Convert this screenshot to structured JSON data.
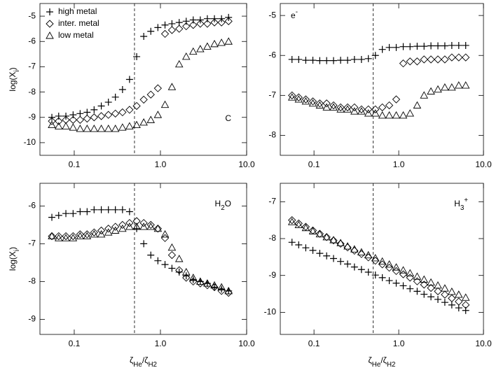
{
  "chart_data": [
    {
      "type": "scatter",
      "xscale": "log",
      "xlim": [
        0.04,
        10
      ],
      "xticks": [
        0.1,
        {
          "value": 1,
          "label": "1.0"
        },
        {
          "value": 10,
          "label": "10.0"
        }
      ],
      "ylim": [
        -10.5,
        -4.5
      ],
      "yticks": [
        -10,
        -9,
        -8,
        -7,
        -6,
        -5
      ],
      "vline": 0.5,
      "legend": "upper left",
      "annotation": [
        {
          "text": "C"
        }
      ],
      "ylabel": [
        {
          "text": "log(X"
        },
        {
          "text": "i",
          "sub": true
        },
        {
          "text": ")"
        }
      ],
      "x": [
        0.055,
        0.066,
        0.08,
        0.097,
        0.117,
        0.141,
        0.17,
        0.206,
        0.249,
        0.3,
        0.363,
        0.438,
        0.53,
        0.64,
        0.773,
        0.934,
        1.13,
        1.36,
        1.65,
        1.99,
        2.4,
        2.9,
        3.5,
        4.23,
        5.11,
        6.17
      ],
      "series": [
        {
          "name": "high metal",
          "marker": "plus",
          "color": "#000000",
          "values": [
            -9.0,
            -8.95,
            -8.95,
            -8.9,
            -8.85,
            -8.8,
            -8.7,
            -8.55,
            -8.4,
            -8.2,
            -7.9,
            -7.5,
            -6.6,
            -5.8,
            -5.6,
            -5.45,
            -5.35,
            -5.3,
            -5.25,
            -5.2,
            -5.15,
            -5.15,
            -5.1,
            -5.1,
            -5.1,
            -5.05
          ]
        },
        {
          "name": "inter. metal",
          "marker": "diamond",
          "color": "#000000",
          "values": [
            -9.15,
            -9.15,
            -9.1,
            -9.1,
            -9.1,
            -9.05,
            -9.0,
            -8.95,
            -8.9,
            -8.85,
            -8.8,
            -8.7,
            -8.55,
            -8.3,
            -8.1,
            -7.85,
            -5.7,
            -5.55,
            -5.5,
            -5.4,
            -5.35,
            -5.3,
            -5.3,
            -5.25,
            -5.25,
            -5.2
          ]
        },
        {
          "name": "low metal",
          "marker": "triangle",
          "color": "#000000",
          "values": [
            -9.3,
            -9.35,
            -9.35,
            -9.4,
            -9.45,
            -9.45,
            -9.45,
            -9.45,
            -9.45,
            -9.45,
            -9.4,
            -9.35,
            -9.3,
            -9.2,
            -9.1,
            -8.9,
            -8.5,
            -7.8,
            -6.9,
            -6.6,
            -6.4,
            -6.3,
            -6.2,
            -6.1,
            -6.05,
            -6.0
          ]
        }
      ]
    },
    {
      "type": "scatter",
      "xscale": "log",
      "xlim": [
        0.04,
        10
      ],
      "xticks": [
        0.1,
        {
          "value": 1,
          "label": "1.0"
        },
        {
          "value": 10,
          "label": "10.0"
        }
      ],
      "ylim": [
        -8.5,
        -4.7
      ],
      "yticks": [
        -8,
        -7,
        -6,
        -5
      ],
      "vline": 0.5,
      "annotation": [
        {
          "text": "e"
        },
        {
          "text": "-",
          "sup": true
        }
      ],
      "x": [
        0.055,
        0.066,
        0.08,
        0.097,
        0.117,
        0.141,
        0.17,
        0.206,
        0.249,
        0.3,
        0.363,
        0.438,
        0.53,
        0.64,
        0.773,
        0.934,
        1.13,
        1.36,
        1.65,
        1.99,
        2.4,
        2.9,
        3.5,
        4.23,
        5.11,
        6.17
      ],
      "series": [
        {
          "marker": "plus",
          "color": "#000000",
          "values": [
            -6.1,
            -6.1,
            -6.12,
            -6.12,
            -6.13,
            -6.13,
            -6.13,
            -6.12,
            -6.12,
            -6.1,
            -6.1,
            -6.08,
            -6.0,
            -5.85,
            -5.8,
            -5.8,
            -5.78,
            -5.78,
            -5.77,
            -5.77,
            -5.76,
            -5.76,
            -5.76,
            -5.75,
            -5.75,
            -5.75
          ]
        },
        {
          "marker": "diamond",
          "color": "#000000",
          "values": [
            -7.0,
            -7.05,
            -7.1,
            -7.15,
            -7.2,
            -7.2,
            -7.25,
            -7.3,
            -7.3,
            -7.3,
            -7.35,
            -7.35,
            -7.35,
            -7.3,
            -7.25,
            -7.1,
            -6.2,
            -6.15,
            -6.15,
            -6.1,
            -6.1,
            -6.1,
            -6.1,
            -6.05,
            -6.05,
            -6.05
          ]
        },
        {
          "marker": "triangle",
          "color": "#000000",
          "values": [
            -7.05,
            -7.1,
            -7.15,
            -7.2,
            -7.25,
            -7.3,
            -7.3,
            -7.35,
            -7.35,
            -7.4,
            -7.4,
            -7.45,
            -7.45,
            -7.5,
            -7.5,
            -7.5,
            -7.5,
            -7.45,
            -7.25,
            -7.0,
            -6.9,
            -6.85,
            -6.8,
            -6.8,
            -6.75,
            -6.75
          ]
        }
      ]
    },
    {
      "type": "scatter",
      "xscale": "log",
      "xlim": [
        0.04,
        10
      ],
      "xticks": [
        0.1,
        {
          "value": 1,
          "label": "1.0"
        },
        {
          "value": 10,
          "label": "10.0"
        }
      ],
      "ylim": [
        -9.4,
        -5.4
      ],
      "yticks": [
        -9,
        -8,
        -7,
        -6
      ],
      "vline": 0.5,
      "annotation": [
        {
          "text": "H"
        },
        {
          "text": "2",
          "sub": true
        },
        {
          "text": "O"
        }
      ],
      "ylabel": [
        {
          "text": "log(X"
        },
        {
          "text": "i",
          "sub": true
        },
        {
          "text": ")"
        }
      ],
      "xlabel": [
        {
          "text": "ζ"
        },
        {
          "text": "He",
          "sub": true
        },
        {
          "text": "/ζ"
        },
        {
          "text": "H2",
          "sub": true
        }
      ],
      "x": [
        0.055,
        0.066,
        0.08,
        0.097,
        0.117,
        0.141,
        0.17,
        0.206,
        0.249,
        0.3,
        0.363,
        0.438,
        0.53,
        0.64,
        0.773,
        0.934,
        1.13,
        1.36,
        1.65,
        1.99,
        2.4,
        2.9,
        3.5,
        4.23,
        5.11,
        6.17
      ],
      "series": [
        {
          "marker": "plus",
          "color": "#000000",
          "values": [
            -6.3,
            -6.25,
            -6.2,
            -6.2,
            -6.15,
            -6.15,
            -6.1,
            -6.1,
            -6.1,
            -6.1,
            -6.1,
            -6.15,
            -6.6,
            -7.0,
            -7.3,
            -7.45,
            -7.55,
            -7.65,
            -7.75,
            -7.85,
            -7.95,
            -8.0,
            -8.05,
            -8.15,
            -8.2,
            -8.25
          ]
        },
        {
          "marker": "diamond",
          "color": "#000000",
          "values": [
            -6.8,
            -6.8,
            -6.8,
            -6.8,
            -6.75,
            -6.75,
            -6.7,
            -6.65,
            -6.6,
            -6.55,
            -6.5,
            -6.45,
            -6.4,
            -6.45,
            -6.5,
            -6.6,
            -6.85,
            -7.3,
            -7.7,
            -7.9,
            -8.0,
            -8.05,
            -8.1,
            -8.15,
            -8.25,
            -8.3
          ]
        },
        {
          "marker": "triangle",
          "color": "#000000",
          "values": [
            -6.8,
            -6.85,
            -6.85,
            -6.85,
            -6.8,
            -6.8,
            -6.75,
            -6.75,
            -6.7,
            -6.65,
            -6.6,
            -6.55,
            -6.55,
            -6.55,
            -6.55,
            -6.6,
            -6.75,
            -7.1,
            -7.4,
            -7.75,
            -7.9,
            -8.0,
            -8.05,
            -8.1,
            -8.15,
            -8.25
          ]
        }
      ]
    },
    {
      "type": "scatter",
      "xscale": "log",
      "xlim": [
        0.04,
        10
      ],
      "xticks": [
        0.1,
        {
          "value": 1,
          "label": "1.0"
        },
        {
          "value": 10,
          "label": "10.0"
        }
      ],
      "ylim": [
        -10.6,
        -6.5
      ],
      "yticks": [
        -10,
        -9,
        -8,
        -7
      ],
      "vline": 0.5,
      "annotation": [
        {
          "text": "H"
        },
        {
          "text": "3",
          "sub": true
        },
        {
          "text": "+",
          "sup": true
        }
      ],
      "xlabel": [
        {
          "text": "ζ"
        },
        {
          "text": "He",
          "sub": true
        },
        {
          "text": "/ζ"
        },
        {
          "text": "H2",
          "sub": true
        }
      ],
      "x": [
        0.055,
        0.066,
        0.08,
        0.097,
        0.117,
        0.141,
        0.17,
        0.206,
        0.249,
        0.3,
        0.363,
        0.438,
        0.53,
        0.64,
        0.773,
        0.934,
        1.13,
        1.36,
        1.65,
        1.99,
        2.4,
        2.9,
        3.5,
        4.23,
        5.11,
        6.17
      ],
      "series": [
        {
          "marker": "plus",
          "color": "#000000",
          "values": [
            -8.1,
            -8.17,
            -8.25,
            -8.32,
            -8.4,
            -8.47,
            -8.54,
            -8.62,
            -8.69,
            -8.77,
            -8.84,
            -8.91,
            -8.99,
            -9.06,
            -9.14,
            -9.21,
            -9.28,
            -9.36,
            -9.43,
            -9.51,
            -9.58,
            -9.65,
            -9.73,
            -9.8,
            -9.88,
            -9.95
          ]
        },
        {
          "marker": "diamond",
          "color": "#000000",
          "values": [
            -7.5,
            -7.59,
            -7.68,
            -7.78,
            -7.87,
            -7.96,
            -8.05,
            -8.14,
            -8.24,
            -8.33,
            -8.42,
            -8.51,
            -8.6,
            -8.7,
            -8.79,
            -8.88,
            -8.97,
            -9.06,
            -9.16,
            -9.25,
            -9.34,
            -9.43,
            -9.52,
            -9.62,
            -9.71,
            -9.8
          ]
        },
        {
          "marker": "triangle",
          "color": "#000000",
          "values": [
            -7.55,
            -7.63,
            -7.71,
            -7.8,
            -7.88,
            -7.96,
            -8.04,
            -8.12,
            -8.21,
            -8.29,
            -8.37,
            -8.45,
            -8.53,
            -8.62,
            -8.7,
            -8.78,
            -8.86,
            -8.94,
            -9.03,
            -9.11,
            -9.19,
            -9.27,
            -9.35,
            -9.44,
            -9.52,
            -9.6
          ]
        }
      ]
    }
  ]
}
